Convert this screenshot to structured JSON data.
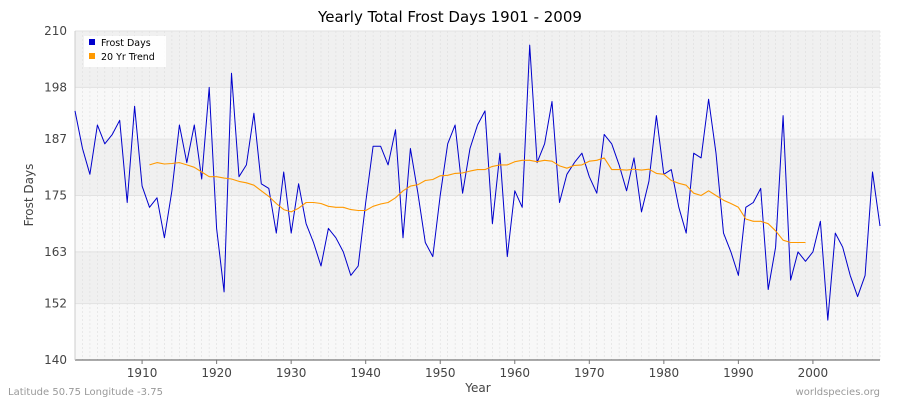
{
  "chart_data": {
    "type": "line",
    "title": "Yearly Total Frost Days 1901 - 2009",
    "xlabel": "Year",
    "ylabel": "Frost Days",
    "xlim": [
      1901,
      2009
    ],
    "ylim": [
      140,
      210
    ],
    "yticks": [
      140,
      152,
      163,
      175,
      187,
      198,
      210
    ],
    "xticks": [
      1910,
      1920,
      1930,
      1940,
      1950,
      1960,
      1970,
      1980,
      1990,
      2000
    ],
    "legend_position": "top-left",
    "series": [
      {
        "name": "Frost Days",
        "color": "#0000cc",
        "x": [
          1901,
          1902,
          1903,
          1904,
          1905,
          1906,
          1907,
          1908,
          1909,
          1910,
          1911,
          1912,
          1913,
          1914,
          1915,
          1916,
          1917,
          1918,
          1919,
          1920,
          1921,
          1922,
          1923,
          1924,
          1925,
          1926,
          1927,
          1928,
          1929,
          1930,
          1931,
          1932,
          1933,
          1934,
          1935,
          1936,
          1937,
          1938,
          1939,
          1940,
          1941,
          1942,
          1943,
          1944,
          1945,
          1946,
          1947,
          1948,
          1949,
          1950,
          1951,
          1952,
          1953,
          1954,
          1955,
          1956,
          1957,
          1958,
          1959,
          1960,
          1961,
          1962,
          1963,
          1964,
          1965,
          1966,
          1967,
          1968,
          1969,
          1970,
          1971,
          1972,
          1973,
          1974,
          1975,
          1976,
          1977,
          1978,
          1979,
          1980,
          1981,
          1982,
          1983,
          1984,
          1985,
          1986,
          1987,
          1988,
          1989,
          1990,
          1991,
          1992,
          1993,
          1994,
          1995,
          1996,
          1997,
          1998,
          1999,
          2000,
          2001,
          2002,
          2003,
          2004,
          2005,
          2006,
          2007,
          2008,
          2009
        ],
        "values": [
          193,
          185,
          179.5,
          190,
          186,
          188,
          191,
          173.5,
          194,
          177,
          172.5,
          174.5,
          166,
          176,
          190,
          182,
          190,
          178.5,
          198,
          168,
          154.5,
          201,
          179,
          181.5,
          192.5,
          177.5,
          176.5,
          167,
          180,
          167,
          177.5,
          169,
          165,
          160,
          168,
          166,
          163,
          158,
          160,
          173.5,
          185.5,
          185.5,
          181.5,
          189,
          166,
          185,
          175.5,
          165,
          162,
          175,
          186,
          190,
          175.5,
          185,
          190,
          193,
          169,
          184,
          162,
          176,
          172.5,
          207,
          182,
          186,
          195,
          173.5,
          179.5,
          182,
          184,
          179,
          175.5,
          188,
          186,
          181.5,
          176,
          183,
          171.5,
          178,
          192,
          179.5,
          180.5,
          172.5,
          167,
          184,
          183,
          195.5,
          184,
          167,
          163,
          158,
          172.5,
          173.5,
          176.5,
          155,
          164,
          192,
          157,
          163,
          161,
          163,
          169.5,
          148.5,
          167,
          164,
          158,
          153.5,
          158,
          180,
          168.5
        ]
      },
      {
        "name": "20 Yr Trend",
        "color": "#ff9900",
        "x": [
          1911,
          1912,
          1913,
          1914,
          1915,
          1916,
          1917,
          1918,
          1919,
          1920,
          1921,
          1922,
          1923,
          1924,
          1925,
          1926,
          1927,
          1928,
          1929,
          1930,
          1931,
          1932,
          1933,
          1934,
          1935,
          1936,
          1937,
          1938,
          1939,
          1940,
          1941,
          1942,
          1943,
          1944,
          1945,
          1946,
          1947,
          1948,
          1949,
          1950,
          1951,
          1952,
          1953,
          1954,
          1955,
          1956,
          1957,
          1958,
          1959,
          1960,
          1961,
          1962,
          1963,
          1964,
          1965,
          1966,
          1967,
          1968,
          1969,
          1970,
          1971,
          1972,
          1973,
          1974,
          1975,
          1976,
          1977,
          1978,
          1979,
          1980,
          1981,
          1982,
          1983,
          1984,
          1985,
          1986,
          1987,
          1988,
          1989,
          1990,
          1991,
          1992,
          1993,
          1994,
          1995,
          1996,
          1997,
          1998,
          1999
        ],
        "values": [
          181.5,
          182,
          181.7,
          181.8,
          182,
          181.5,
          181,
          180,
          179,
          179,
          178.7,
          178.5,
          178,
          177.7,
          177.2,
          176,
          174.8,
          173.3,
          172,
          171.5,
          172.3,
          173.5,
          173.5,
          173.3,
          172.7,
          172.5,
          172.5,
          172,
          171.8,
          171.8,
          172.7,
          173.2,
          173.5,
          174.5,
          176,
          177,
          177.3,
          178.2,
          178.4,
          179.2,
          179.3,
          179.7,
          179.8,
          180.2,
          180.5,
          180.5,
          181.2,
          181.5,
          181.5,
          182.2,
          182.5,
          182.5,
          182.2,
          182.5,
          182.3,
          181.3,
          180.8,
          181.4,
          181.5,
          182.3,
          182.5,
          183,
          180.5,
          180.5,
          180.4,
          180.6,
          180.4,
          180.6,
          179.7,
          179.5,
          178.2,
          177.6,
          177.2,
          175.5,
          175,
          176,
          175,
          174,
          173.3,
          172.5,
          170,
          169.5,
          169.5,
          169,
          167.5,
          165.5,
          165,
          165,
          165
        ]
      }
    ]
  },
  "footer": {
    "left": "Latitude 50.75 Longitude -3.75",
    "right": "worldspecies.org"
  }
}
